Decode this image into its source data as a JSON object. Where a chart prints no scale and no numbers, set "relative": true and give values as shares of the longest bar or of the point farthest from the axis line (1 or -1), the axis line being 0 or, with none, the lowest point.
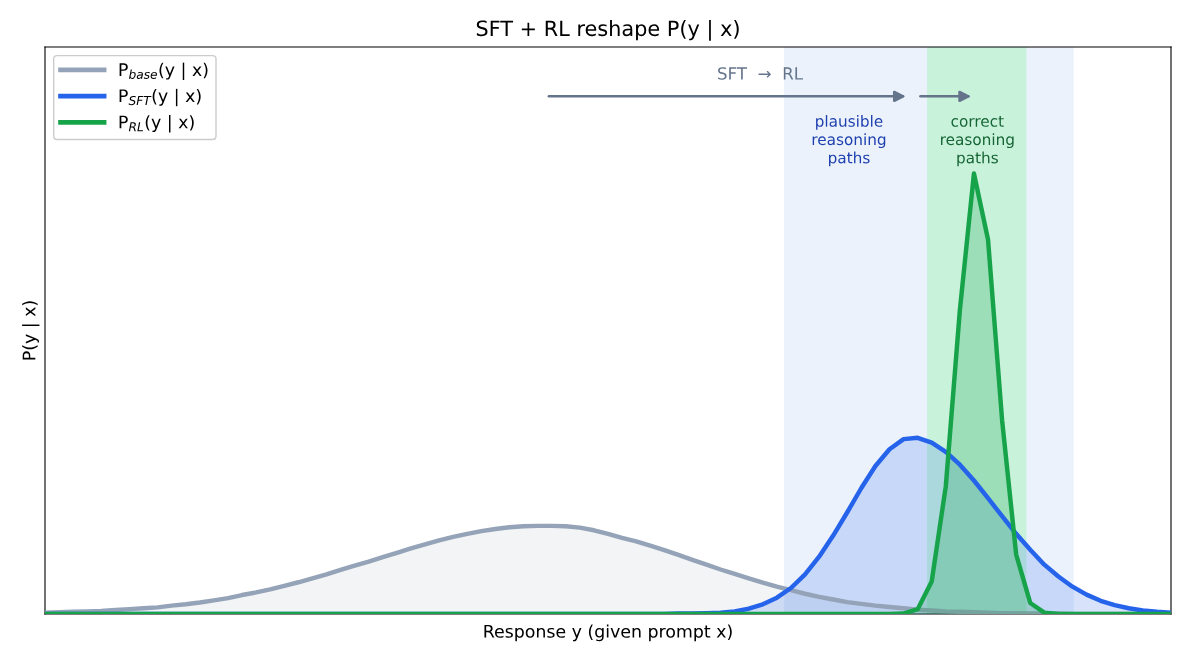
{
  "chart_data": {
    "type": "area",
    "title": "SFT + RL reshape P(y | x)",
    "xlabel": "Response y (given prompt x)",
    "ylabel": "P(y | x)",
    "relative": true,
    "legend": "top left",
    "grid": false,
    "categories": [
      null,
      null,
      null,
      null,
      null,
      null,
      null,
      null,
      null,
      null,
      null,
      null,
      null,
      null,
      null,
      null,
      null,
      null,
      null,
      null,
      null,
      null,
      null,
      null,
      null,
      null,
      null,
      null,
      null,
      null,
      null,
      null,
      null,
      null,
      null,
      null,
      null,
      null,
      null,
      null,
      null,
      null,
      null,
      null,
      null,
      null,
      null,
      null,
      null,
      null,
      null,
      null,
      null,
      null,
      null,
      null,
      null,
      null,
      null,
      null,
      null,
      null,
      null,
      null,
      null,
      null,
      null,
      null,
      null,
      null,
      null,
      null,
      null,
      null,
      null,
      null,
      null,
      null,
      null,
      null,
      null
    ],
    "series": [
      {
        "name": "P$_{base}$(y | x)",
        "color": "#94a3b8",
        "values": [
          0.003,
          0.004,
          0.005,
          0.006,
          0.007,
          0.009,
          0.011,
          0.013,
          0.015,
          0.019,
          0.022,
          0.026,
          0.031,
          0.036,
          0.043,
          0.049,
          0.056,
          0.064,
          0.072,
          0.081,
          0.09,
          0.1,
          0.11,
          0.119,
          0.129,
          0.139,
          0.149,
          0.158,
          0.167,
          0.175,
          0.182,
          0.188,
          0.193,
          0.197,
          0.199,
          0.2,
          0.2,
          0.199,
          0.196,
          0.19,
          0.182,
          0.173,
          0.165,
          0.155,
          0.145,
          0.134,
          0.123,
          0.112,
          0.101,
          0.091,
          0.081,
          0.071,
          0.062,
          0.054,
          0.046,
          0.039,
          0.033,
          0.027,
          0.023,
          0.019,
          0.016,
          0.013,
          0.01,
          0.008,
          0.006,
          0.005,
          0.004,
          0.003,
          0.002,
          0.002,
          0.001,
          0.001,
          0.001,
          0,
          0,
          0,
          0,
          0,
          0,
          0,
          0
        ]
      },
      {
        "name": "P$_{SFT}$(y | x)",
        "color": "#2563eb",
        "values": [
          0,
          0,
          0,
          0,
          0,
          0,
          0,
          0,
          0,
          0,
          0,
          0,
          0,
          0,
          0,
          0,
          0,
          0,
          0,
          0,
          0,
          0,
          0,
          0,
          0,
          0,
          0,
          0,
          0,
          0,
          0,
          0,
          0,
          0,
          0,
          0,
          0,
          0,
          0,
          0,
          0,
          0,
          0,
          0,
          0,
          0.001,
          0.001,
          0.002,
          0.003,
          0.006,
          0.012,
          0.022,
          0.037,
          0.059,
          0.09,
          0.13,
          0.178,
          0.231,
          0.286,
          0.336,
          0.374,
          0.397,
          0.4,
          0.389,
          0.368,
          0.339,
          0.303,
          0.263,
          0.222,
          0.182,
          0.146,
          0.112,
          0.085,
          0.062,
          0.044,
          0.03,
          0.02,
          0.013,
          0.008,
          0.005,
          0.003
        ]
      },
      {
        "name": "P$_{RL}$(y | x)",
        "color": "#16a34a",
        "values": [
          0,
          0,
          0,
          0,
          0,
          0,
          0,
          0,
          0,
          0,
          0,
          0,
          0,
          0,
          0,
          0,
          0,
          0,
          0,
          0,
          0,
          0,
          0,
          0,
          0,
          0,
          0,
          0,
          0,
          0,
          0,
          0,
          0,
          0,
          0,
          0,
          0,
          0,
          0,
          0,
          0,
          0,
          0,
          0,
          0,
          0,
          0,
          0,
          0,
          0,
          0,
          0,
          0,
          0,
          0,
          0,
          0,
          0,
          0,
          0,
          0,
          0.001,
          0.011,
          0.074,
          0.29,
          0.69,
          1,
          0.85,
          0.44,
          0.135,
          0.025,
          0.003,
          0,
          0,
          0,
          0,
          0,
          0,
          0,
          0,
          0
        ]
      }
    ],
    "annotations": [
      "SFT  →  RL",
      "plausible\nreasoning\npaths",
      "correct\nreasoning\npaths"
    ]
  }
}
